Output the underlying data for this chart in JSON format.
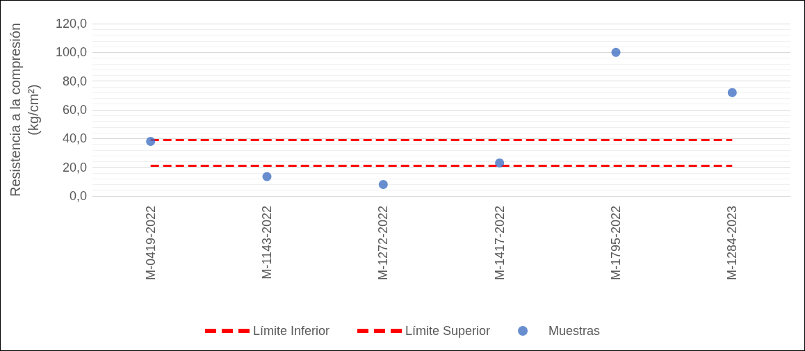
{
  "chart_data": {
    "type": "scatter",
    "ylabel": "Resistencia a la compresión\n(kg/cm²)",
    "categories": [
      "M-0419-2022",
      "M-1143-2022",
      "M-1272-2022",
      "M-1417-2022",
      "M-1795-2022",
      "M-1284-2023"
    ],
    "series": [
      {
        "name": "Límite Inferior",
        "type": "line",
        "color": "#ff0000",
        "line_style": "dashed",
        "marker": "none",
        "values": [
          21,
          21,
          21,
          21,
          21,
          21
        ]
      },
      {
        "name": "Límite Superior",
        "type": "line",
        "color": "#ff0000",
        "line_style": "dashed",
        "marker": "none",
        "values": [
          39,
          39,
          39,
          39,
          39,
          39
        ]
      },
      {
        "name": "Muestras",
        "color": "#4472c4",
        "marker": "circle",
        "values": [
          38,
          13.5,
          8,
          23,
          100,
          72
        ]
      }
    ],
    "ylim": [
      0,
      120
    ],
    "yticks": [
      {
        "value": 0,
        "label": "0,0"
      },
      {
        "value": 20,
        "label": "20,0"
      },
      {
        "value": 40,
        "label": "40,0"
      },
      {
        "value": 60,
        "label": "60,0"
      },
      {
        "value": 80,
        "label": "80,0"
      },
      {
        "value": 100,
        "label": "100,0"
      },
      {
        "value": 120,
        "label": "120,0"
      }
    ],
    "grid": "y",
    "legend": "bottom"
  }
}
